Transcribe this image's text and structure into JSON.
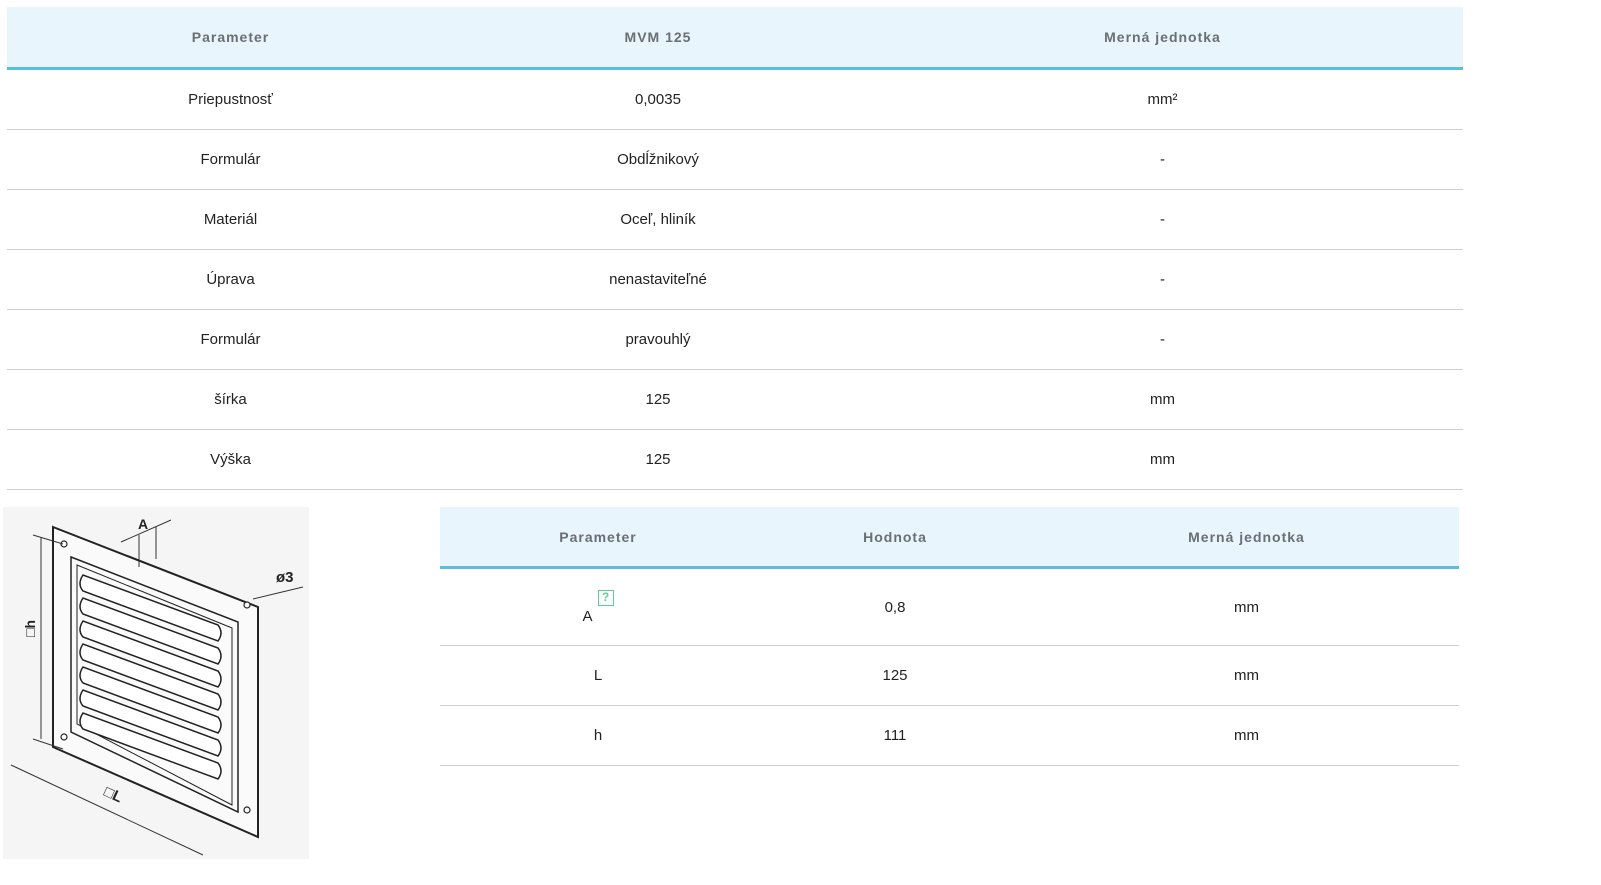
{
  "spec_table": {
    "headers": [
      "Parameter",
      "MVM 125",
      "Merná jednotka"
    ],
    "rows": [
      [
        "Priepustnosť",
        "0,0035",
        "mm²"
      ],
      [
        "Formulár",
        "Obdĺžnikový",
        "-"
      ],
      [
        "Materiál",
        "Oceľ, hliník",
        "-"
      ],
      [
        "Úprava",
        "nenastaviteľné",
        "-"
      ],
      [
        "Formulár",
        "pravouhlý",
        "-"
      ],
      [
        "šírka",
        "125",
        "mm"
      ],
      [
        "Výška",
        "125",
        "mm"
      ]
    ]
  },
  "dimension_table": {
    "headers": [
      "Parameter",
      "Hodnota",
      "Merná jednotka"
    ],
    "rows": [
      [
        "A",
        "0,8",
        "mm"
      ],
      [
        "L",
        "125",
        "mm"
      ],
      [
        "h",
        "111",
        "mm"
      ]
    ],
    "help_icon": "?"
  },
  "drawing": {
    "labels": {
      "a": "A",
      "diameter": "ø3",
      "h": "□h",
      "l": "□L"
    }
  }
}
